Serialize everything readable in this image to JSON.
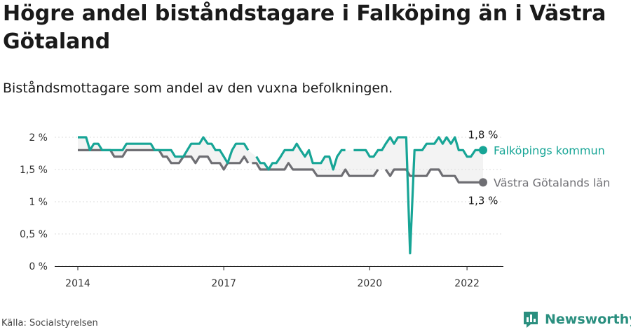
{
  "header": {
    "title": "Högre andel biståndstagare i Falköping än i Västra Götaland",
    "subtitle": "Biståndsmottagare som andel av den vuxna befolkningen."
  },
  "footer": {
    "source": "Källa: Socialstyrelsen",
    "brand": "Newsworthy"
  },
  "colors": {
    "falkoping": "#17a596",
    "vg": "#6e6e73",
    "band": "#f3f3f3",
    "brand": "#2a8f7f"
  },
  "chart_data": {
    "type": "line",
    "x_unit": "year",
    "xlim": [
      2013.6,
      2022.6
    ],
    "ylim": [
      0,
      2
    ],
    "y_ticks": [
      0,
      0.5,
      1,
      1.5,
      2
    ],
    "y_tick_labels": [
      "0 %",
      "0,5 %",
      "1 %",
      "1,5 %",
      "2 %"
    ],
    "x_ticks": [
      2014,
      2017,
      2020,
      2022
    ],
    "x_tick_labels": [
      "2014",
      "2017",
      "2020",
      "2022"
    ],
    "grid": "horizontal",
    "legend": "direct labels at line ends",
    "series": [
      {
        "name": "Falköpings kommun",
        "end_label": "1,8 %",
        "values": [
          [
            [
              2014.0,
              2.0
            ],
            [
              2014.08,
              2.0
            ],
            [
              2014.17,
              2.0
            ],
            [
              2014.25,
              1.8
            ],
            [
              2014.33,
              1.9
            ],
            [
              2014.42,
              1.9
            ],
            [
              2014.5,
              1.8
            ],
            [
              2014.58,
              1.8
            ],
            [
              2014.67,
              1.8
            ],
            [
              2014.75,
              1.8
            ],
            [
              2014.83,
              1.8
            ],
            [
              2014.92,
              1.8
            ],
            [
              2015.0,
              1.9
            ],
            [
              2015.08,
              1.9
            ],
            [
              2015.17,
              1.9
            ],
            [
              2015.25,
              1.9
            ],
            [
              2015.33,
              1.9
            ],
            [
              2015.42,
              1.9
            ],
            [
              2015.5,
              1.9
            ],
            [
              2015.58,
              1.8
            ],
            [
              2015.67,
              1.8
            ],
            [
              2015.75,
              1.8
            ],
            [
              2015.83,
              1.8
            ],
            [
              2015.92,
              1.8
            ],
            [
              2016.0,
              1.7
            ],
            [
              2016.08,
              1.7
            ],
            [
              2016.17,
              1.7
            ],
            [
              2016.25,
              1.8
            ],
            [
              2016.33,
              1.9
            ],
            [
              2016.42,
              1.9
            ],
            [
              2016.5,
              1.9
            ],
            [
              2016.58,
              2.0
            ],
            [
              2016.67,
              1.9
            ],
            [
              2016.75,
              1.9
            ],
            [
              2016.83,
              1.8
            ],
            [
              2016.92,
              1.8
            ],
            [
              2017.0,
              1.7
            ],
            [
              2017.08,
              1.6
            ],
            [
              2017.17,
              1.8
            ],
            [
              2017.25,
              1.9
            ],
            [
              2017.33,
              1.9
            ],
            [
              2017.42,
              1.9
            ],
            [
              2017.5,
              1.8
            ]
          ],
          [
            [
              2017.67,
              1.7
            ],
            [
              2017.75,
              1.6
            ],
            [
              2017.83,
              1.6
            ],
            [
              2017.92,
              1.5
            ],
            [
              2018.0,
              1.6
            ],
            [
              2018.08,
              1.6
            ],
            [
              2018.17,
              1.7
            ],
            [
              2018.25,
              1.8
            ],
            [
              2018.33,
              1.8
            ],
            [
              2018.42,
              1.8
            ],
            [
              2018.5,
              1.9
            ],
            [
              2018.58,
              1.8
            ],
            [
              2018.67,
              1.7
            ],
            [
              2018.75,
              1.8
            ],
            [
              2018.83,
              1.6
            ],
            [
              2018.92,
              1.6
            ],
            [
              2019.0,
              1.6
            ],
            [
              2019.08,
              1.7
            ],
            [
              2019.17,
              1.7
            ],
            [
              2019.25,
              1.5
            ],
            [
              2019.33,
              1.7
            ],
            [
              2019.42,
              1.8
            ],
            [
              2019.5,
              1.8
            ]
          ],
          [
            [
              2019.67,
              1.8
            ],
            [
              2019.75,
              1.8
            ],
            [
              2019.83,
              1.8
            ],
            [
              2019.92,
              1.8
            ],
            [
              2020.0,
              1.7
            ],
            [
              2020.08,
              1.7
            ],
            [
              2020.17,
              1.8
            ],
            [
              2020.25,
              1.8
            ],
            [
              2020.33,
              1.9
            ],
            [
              2020.42,
              2.0
            ],
            [
              2020.5,
              1.9
            ],
            [
              2020.58,
              2.0
            ],
            [
              2020.67,
              2.0
            ],
            [
              2020.75,
              2.0
            ],
            [
              2020.83,
              0.2
            ],
            [
              2020.92,
              1.8
            ],
            [
              2021.0,
              1.8
            ],
            [
              2021.08,
              1.8
            ],
            [
              2021.17,
              1.9
            ],
            [
              2021.25,
              1.9
            ],
            [
              2021.33,
              1.9
            ],
            [
              2021.42,
              2.0
            ],
            [
              2021.5,
              1.9
            ],
            [
              2021.58,
              2.0
            ],
            [
              2021.67,
              1.9
            ],
            [
              2021.75,
              2.0
            ],
            [
              2021.83,
              1.8
            ],
            [
              2021.92,
              1.8
            ],
            [
              2022.0,
              1.7
            ],
            [
              2022.08,
              1.7
            ],
            [
              2022.17,
              1.8
            ],
            [
              2022.25,
              1.8
            ],
            [
              2022.33,
              1.8
            ]
          ]
        ]
      },
      {
        "name": "Västra Götalands län",
        "end_label": "1,3 %",
        "values": [
          [
            [
              2014.0,
              1.8
            ],
            [
              2014.08,
              1.8
            ],
            [
              2014.17,
              1.8
            ],
            [
              2014.25,
              1.8
            ],
            [
              2014.33,
              1.8
            ],
            [
              2014.42,
              1.8
            ],
            [
              2014.5,
              1.8
            ],
            [
              2014.58,
              1.8
            ],
            [
              2014.67,
              1.8
            ],
            [
              2014.75,
              1.7
            ],
            [
              2014.83,
              1.7
            ],
            [
              2014.92,
              1.7
            ],
            [
              2015.0,
              1.8
            ],
            [
              2015.08,
              1.8
            ],
            [
              2015.17,
              1.8
            ],
            [
              2015.25,
              1.8
            ],
            [
              2015.33,
              1.8
            ],
            [
              2015.42,
              1.8
            ],
            [
              2015.5,
              1.8
            ],
            [
              2015.58,
              1.8
            ],
            [
              2015.67,
              1.8
            ],
            [
              2015.75,
              1.7
            ],
            [
              2015.83,
              1.7
            ],
            [
              2015.92,
              1.6
            ],
            [
              2016.0,
              1.6
            ],
            [
              2016.08,
              1.6
            ],
            [
              2016.17,
              1.7
            ],
            [
              2016.25,
              1.7
            ],
            [
              2016.33,
              1.7
            ],
            [
              2016.42,
              1.6
            ],
            [
              2016.5,
              1.7
            ],
            [
              2016.58,
              1.7
            ],
            [
              2016.67,
              1.7
            ],
            [
              2016.75,
              1.6
            ],
            [
              2016.83,
              1.6
            ],
            [
              2016.92,
              1.6
            ],
            [
              2017.0,
              1.5
            ],
            [
              2017.08,
              1.6
            ],
            [
              2017.17,
              1.6
            ],
            [
              2017.25,
              1.6
            ],
            [
              2017.33,
              1.6
            ],
            [
              2017.42,
              1.7
            ],
            [
              2017.5,
              1.6
            ]
          ],
          [
            [
              2017.58,
              1.6
            ],
            [
              2017.67,
              1.6
            ],
            [
              2017.75,
              1.5
            ],
            [
              2017.83,
              1.5
            ],
            [
              2017.92,
              1.5
            ],
            [
              2018.0,
              1.5
            ],
            [
              2018.08,
              1.5
            ],
            [
              2018.17,
              1.5
            ],
            [
              2018.25,
              1.5
            ],
            [
              2018.33,
              1.6
            ],
            [
              2018.42,
              1.5
            ],
            [
              2018.5,
              1.5
            ],
            [
              2018.58,
              1.5
            ],
            [
              2018.67,
              1.5
            ],
            [
              2018.75,
              1.5
            ],
            [
              2018.83,
              1.5
            ],
            [
              2018.92,
              1.4
            ],
            [
              2019.0,
              1.4
            ],
            [
              2019.08,
              1.4
            ],
            [
              2019.17,
              1.4
            ],
            [
              2019.25,
              1.4
            ],
            [
              2019.33,
              1.4
            ],
            [
              2019.42,
              1.4
            ],
            [
              2019.5,
              1.5
            ],
            [
              2019.58,
              1.4
            ],
            [
              2019.67,
              1.4
            ],
            [
              2019.75,
              1.4
            ],
            [
              2019.83,
              1.4
            ],
            [
              2019.92,
              1.4
            ],
            [
              2020.0,
              1.4
            ],
            [
              2020.08,
              1.4
            ],
            [
              2020.17,
              1.5
            ]
          ],
          [
            [
              2020.33,
              1.5
            ],
            [
              2020.42,
              1.4
            ],
            [
              2020.5,
              1.5
            ],
            [
              2020.58,
              1.5
            ],
            [
              2020.67,
              1.5
            ],
            [
              2020.75,
              1.5
            ],
            [
              2020.83,
              1.4
            ],
            [
              2020.92,
              1.4
            ],
            [
              2021.0,
              1.4
            ],
            [
              2021.08,
              1.4
            ],
            [
              2021.17,
              1.4
            ],
            [
              2021.25,
              1.5
            ],
            [
              2021.33,
              1.5
            ],
            [
              2021.42,
              1.5
            ],
            [
              2021.5,
              1.4
            ],
            [
              2021.58,
              1.4
            ],
            [
              2021.67,
              1.4
            ],
            [
              2021.75,
              1.4
            ],
            [
              2021.83,
              1.3
            ],
            [
              2021.92,
              1.3
            ],
            [
              2022.0,
              1.3
            ],
            [
              2022.08,
              1.3
            ],
            [
              2022.17,
              1.3
            ],
            [
              2022.25,
              1.3
            ],
            [
              2022.33,
              1.3
            ]
          ]
        ]
      }
    ]
  }
}
